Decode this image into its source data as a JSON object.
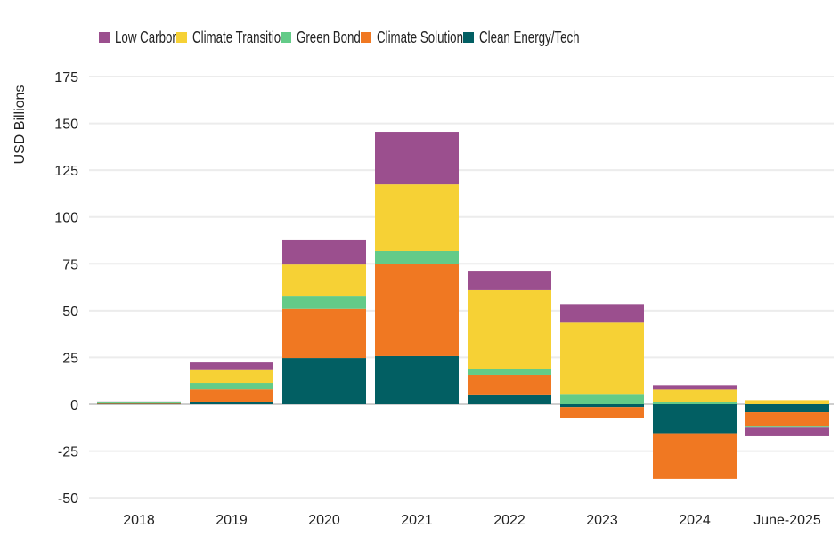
{
  "chart_data": {
    "type": "bar",
    "stacked": true,
    "title": "",
    "xlabel": "",
    "ylabel": "USD Billions",
    "ylim": [
      -50,
      175
    ],
    "yticks": [
      -50,
      -25,
      0,
      25,
      50,
      75,
      100,
      125,
      150,
      175
    ],
    "grid": true,
    "legend_position": "top",
    "categories": [
      "2018",
      "2019",
      "2020",
      "2021",
      "2022",
      "2023",
      "2024",
      "June-2025"
    ],
    "series": [
      {
        "name": "Clean Energy/Tech",
        "color": "#025f63",
        "values": [
          0.2,
          1.3,
          24.7,
          25.7,
          4.8,
          -1.5,
          -15.5,
          -4.3
        ]
      },
      {
        "name": "Climate Solutions",
        "color": "#f07822",
        "values": [
          0.3,
          6.7,
          26.3,
          49.4,
          10.9,
          -5.7,
          -24.4,
          -7.7
        ]
      },
      {
        "name": "Green Bonds",
        "color": "#63cb88",
        "values": [
          0.5,
          3.4,
          6.5,
          6.7,
          3.3,
          5.1,
          1.4,
          -0.5
        ]
      },
      {
        "name": "Climate Transition",
        "color": "#f6d135",
        "values": [
          0.3,
          6.8,
          17.1,
          35.6,
          41.9,
          38.5,
          6.5,
          2.2
        ]
      },
      {
        "name": "Low Carbon",
        "color": "#9b4f8e",
        "values": [
          0.2,
          4.1,
          13.4,
          28.1,
          10.4,
          9.5,
          2.4,
          -4.6
        ]
      }
    ],
    "legend_order": [
      "Low Carbon",
      "Climate Transition",
      "Green Bonds",
      "Climate Solutions",
      "Clean Energy/Tech"
    ]
  }
}
